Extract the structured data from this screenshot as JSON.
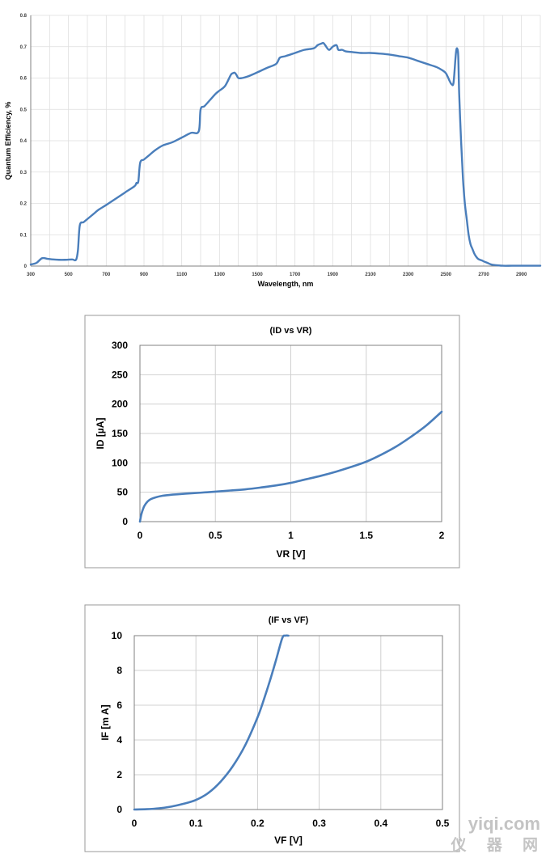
{
  "chart_data": [
    {
      "type": "line",
      "title": "",
      "xlabel": "Wavelength, nm",
      "ylabel": "Quantum Efficiency, %",
      "xlim": [
        300,
        3000
      ],
      "ylim": [
        0,
        0.8
      ],
      "x_ticks": [
        "300",
        "500",
        "700",
        "900",
        "1100",
        "1300",
        "1500",
        "1700",
        "1900",
        "2100",
        "2300",
        "2500",
        "2700",
        "2900"
      ],
      "y_ticks": [
        "0",
        "0.1",
        "0.2",
        "0.3",
        "0.4",
        "0.5",
        "0.6",
        "0.7",
        "0.8"
      ],
      "grid": true,
      "color": "#4a7ebb",
      "series": [
        {
          "x": [
            300,
            330,
            360,
            390,
            420,
            450,
            480,
            520,
            540,
            550,
            560,
            580,
            600,
            620,
            640,
            660,
            700,
            750,
            800,
            850,
            860,
            870,
            880,
            900,
            930,
            960,
            1000,
            1050,
            1100,
            1150,
            1190,
            1200,
            1220,
            1250,
            1280,
            1300,
            1330,
            1360,
            1370,
            1380,
            1390,
            1400,
            1420,
            1450,
            1500,
            1550,
            1600,
            1620,
            1650,
            1700,
            1750,
            1800,
            1820,
            1840,
            1850,
            1860,
            1880,
            1900,
            1920,
            1930,
            1950,
            1970,
            2000,
            2050,
            2100,
            2150,
            2200,
            2250,
            2300,
            2350,
            2400,
            2450,
            2480,
            2500,
            2520,
            2530,
            2540,
            2550,
            2555,
            2560,
            2565,
            2570,
            2580,
            2590,
            2600,
            2610,
            2620,
            2630,
            2640,
            2650,
            2660,
            2670,
            2680,
            2690,
            2700,
            2720,
            2740,
            2760,
            2780,
            2800,
            2850,
            2900,
            2950,
            3000
          ],
          "y": [
            0.005,
            0.01,
            0.025,
            0.023,
            0.021,
            0.02,
            0.02,
            0.021,
            0.02,
            0.05,
            0.13,
            0.14,
            0.15,
            0.16,
            0.17,
            0.18,
            0.195,
            0.215,
            0.235,
            0.255,
            0.265,
            0.27,
            0.33,
            0.34,
            0.355,
            0.37,
            0.385,
            0.395,
            0.41,
            0.425,
            0.43,
            0.5,
            0.51,
            0.53,
            0.55,
            0.56,
            0.575,
            0.61,
            0.615,
            0.617,
            0.61,
            0.6,
            0.6,
            0.605,
            0.618,
            0.632,
            0.645,
            0.665,
            0.67,
            0.68,
            0.69,
            0.695,
            0.705,
            0.71,
            0.712,
            0.705,
            0.69,
            0.7,
            0.705,
            0.69,
            0.69,
            0.685,
            0.683,
            0.68,
            0.68,
            0.678,
            0.675,
            0.67,
            0.665,
            0.655,
            0.645,
            0.635,
            0.625,
            0.615,
            0.59,
            0.58,
            0.585,
            0.66,
            0.69,
            0.693,
            0.67,
            0.55,
            0.4,
            0.28,
            0.2,
            0.15,
            0.1,
            0.07,
            0.055,
            0.04,
            0.03,
            0.023,
            0.02,
            0.018,
            0.015,
            0.01,
            0.005,
            0.003,
            0.002,
            0.001,
            0.001,
            0.001,
            0.001,
            0.001
          ]
        }
      ]
    },
    {
      "type": "line",
      "title": "(ID vs VR)",
      "xlabel": "VR [V]",
      "ylabel": "ID [µA]",
      "xlim": [
        0,
        2
      ],
      "ylim": [
        0,
        300
      ],
      "x_ticks": [
        "0",
        "0.5",
        "1",
        "1.5",
        "2"
      ],
      "y_ticks": [
        "0",
        "50",
        "100",
        "150",
        "200",
        "250",
        "300"
      ],
      "grid": true,
      "color": "#4a7ebb",
      "series": [
        {
          "x": [
            0,
            0.005,
            0.01,
            0.02,
            0.03,
            0.05,
            0.07,
            0.1,
            0.15,
            0.2,
            0.3,
            0.4,
            0.5,
            0.6,
            0.7,
            0.8,
            0.9,
            1.0,
            1.1,
            1.2,
            1.3,
            1.4,
            1.5,
            1.6,
            1.7,
            1.8,
            1.9,
            2.0
          ],
          "y": [
            0,
            7,
            13,
            21,
            27,
            34,
            38,
            41,
            44,
            45.5,
            47.5,
            49.2,
            51,
            53,
            55,
            58,
            61.5,
            66,
            72,
            78,
            85,
            93,
            102,
            114,
            128,
            145,
            164,
            187
          ]
        }
      ]
    },
    {
      "type": "line",
      "title": "(IF vs VF)",
      "xlabel": "VF [V]",
      "ylabel": "IF [m A]",
      "xlim": [
        0,
        0.5
      ],
      "ylim": [
        0,
        10
      ],
      "x_ticks": [
        "0",
        "0.1",
        "0.2",
        "0.3",
        "0.4",
        "0.5"
      ],
      "y_ticks": [
        "0",
        "2",
        "4",
        "6",
        "8",
        "10"
      ],
      "grid": true,
      "color": "#4a7ebb",
      "series": [
        {
          "x": [
            0,
            0.02,
            0.04,
            0.06,
            0.08,
            0.1,
            0.12,
            0.14,
            0.16,
            0.18,
            0.2,
            0.21,
            0.22,
            0.23,
            0.24,
            0.245,
            0.25
          ],
          "y": [
            0,
            0.02,
            0.07,
            0.17,
            0.33,
            0.55,
            0.95,
            1.6,
            2.5,
            3.7,
            5.3,
            6.3,
            7.4,
            8.6,
            9.85,
            10,
            10
          ]
        }
      ]
    }
  ],
  "watermark": {
    "line1": "yiqi.com",
    "line2": "仪 器 网"
  }
}
